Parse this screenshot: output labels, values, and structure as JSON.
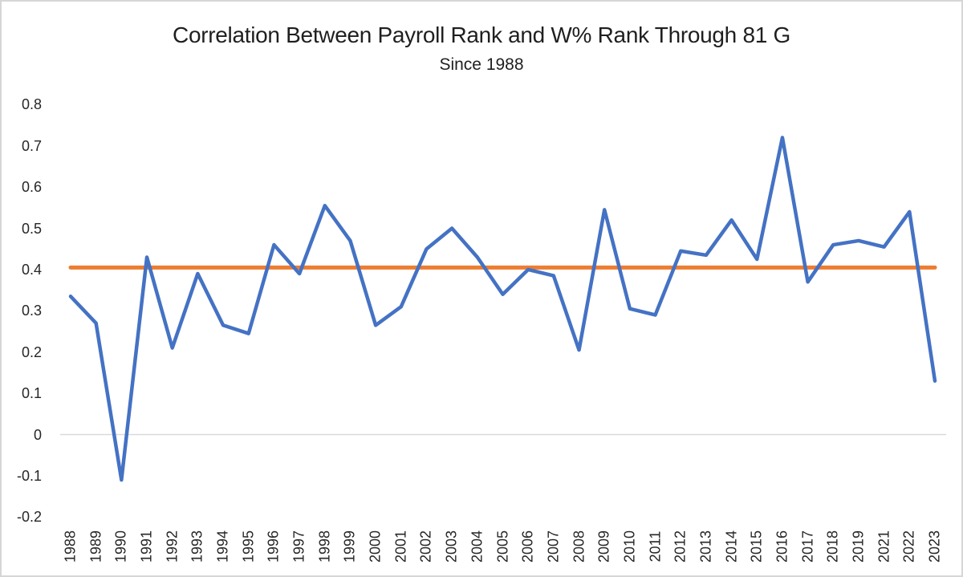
{
  "chart_data": {
    "type": "line",
    "title": "Correlation Between Payroll Rank and W% Rank Through 81 G",
    "subtitle": "Since 1988",
    "categories": [
      "1988",
      "1989",
      "1990",
      "1991",
      "1992",
      "1993",
      "1994",
      "1995",
      "1996",
      "1997",
      "1998",
      "1999",
      "2000",
      "2001",
      "2002",
      "2003",
      "2004",
      "2005",
      "2006",
      "2007",
      "2008",
      "2009",
      "2010",
      "2011",
      "2012",
      "2013",
      "2014",
      "2015",
      "2016",
      "2017",
      "2018",
      "2019",
      "2021",
      "2022",
      "2023"
    ],
    "values": [
      0.335,
      0.27,
      -0.11,
      0.43,
      0.21,
      0.39,
      0.265,
      0.245,
      0.46,
      0.39,
      0.555,
      0.47,
      0.265,
      0.31,
      0.45,
      0.5,
      0.43,
      0.34,
      0.4,
      0.385,
      0.205,
      0.545,
      0.305,
      0.29,
      0.445,
      0.435,
      0.52,
      0.425,
      0.72,
      0.37,
      0.46,
      0.47,
      0.455,
      0.54,
      0.13
    ],
    "average_line_value": 0.405,
    "y_axis": {
      "tick_labels": [
        "0.8",
        "0.7",
        "0.6",
        "0.5",
        "0.4",
        "0.3",
        "0.2",
        "0.1",
        "0",
        "-0.1",
        "-0.2"
      ],
      "min": -0.2,
      "max": 0.8,
      "gridlines": "zero-only"
    },
    "x_axis": {
      "label_rotation_degrees": 90,
      "note_missing_category": "2020"
    },
    "legend": "none",
    "colors": {
      "series_line": "#4472C4",
      "average_line": "#ED7D31",
      "zero_gridline": "#D9D9D9",
      "text": "#262626"
    }
  }
}
